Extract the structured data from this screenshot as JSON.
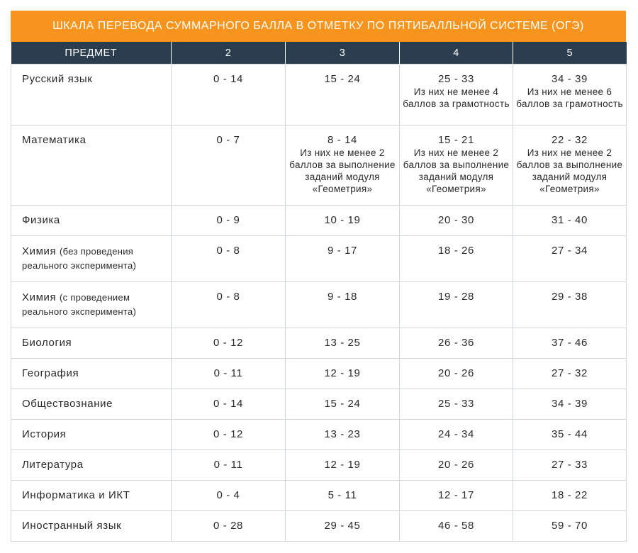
{
  "title": "ШКАЛА ПЕРЕВОДА СУММАРНОГО БАЛЛА В ОТМЕТКУ ПО ПЯТИБАЛЛЬНОЙ СИСТЕМЕ (ОГЭ)",
  "headers": [
    "ПРЕДМЕТ",
    "2",
    "3",
    "4",
    "5"
  ],
  "rows": [
    {
      "subject": "Русский язык",
      "g2": "0 - 14",
      "g3": "15 - 24",
      "g4": "25 - 33",
      "g4_note": "Из них не менее 4 баллов за грамотность",
      "g5": "34 - 39",
      "g5_note": "Из них не менее 6 баллов за грамотность"
    },
    {
      "subject": "Математика",
      "g2": "0 - 7",
      "g3": "8 - 14",
      "g3_note": "Из них не менее 2 баллов за выполнение заданий модуля «Геометрия»",
      "g4": "15 - 21",
      "g4_note": "Из них не менее 2 баллов за выполнение заданий модуля «Геометрия»",
      "g5": "22 - 32",
      "g5_note": "Из них не менее 2 баллов за выполнение заданий модуля «Геометрия»"
    },
    {
      "subject": "Физика",
      "g2": "0 - 9",
      "g3": "10 - 19",
      "g4": "20 - 30",
      "g5": "31 - 40"
    },
    {
      "subject": "Химия",
      "subject_note": "(без проведения реального эксперимента)",
      "g2": "0 - 8",
      "g3": "9 - 17",
      "g4": "18 - 26",
      "g5": "27 - 34"
    },
    {
      "subject": "Химия",
      "subject_note": "(с проведением реального эксперимента)",
      "g2": "0 - 8",
      "g3": "9 - 18",
      "g4": "19 - 28",
      "g5": "29 - 38"
    },
    {
      "subject": "Биология",
      "g2": "0 - 12",
      "g3": "13 - 25",
      "g4": "26 - 36",
      "g5": "37 - 46"
    },
    {
      "subject": "География",
      "g2": "0 - 11",
      "g3": "12 - 19",
      "g4": "20 - 26",
      "g5": "27 - 32"
    },
    {
      "subject": "Обществознание",
      "g2": "0 - 14",
      "g3": "15 - 24",
      "g4": "25 - 33",
      "g5": "34 - 39"
    },
    {
      "subject": "История",
      "g2": "0 - 12",
      "g3": "13 - 23",
      "g4": "24 - 34",
      "g5": "35 - 44"
    },
    {
      "subject": "Литература",
      "g2": "0 - 11",
      "g3": "12 - 19",
      "g4": "20 - 26",
      "g5": "27 - 33"
    },
    {
      "subject": "Информатика и ИКТ",
      "g2": "0 - 4",
      "g3": "5 - 11",
      "g4": "12 - 17",
      "g5": "18 - 22"
    },
    {
      "subject": "Иностранный язык",
      "g2": "0 - 28",
      "g3": "29 - 45",
      "g4": "46 - 58",
      "g5": "59 - 70"
    }
  ]
}
